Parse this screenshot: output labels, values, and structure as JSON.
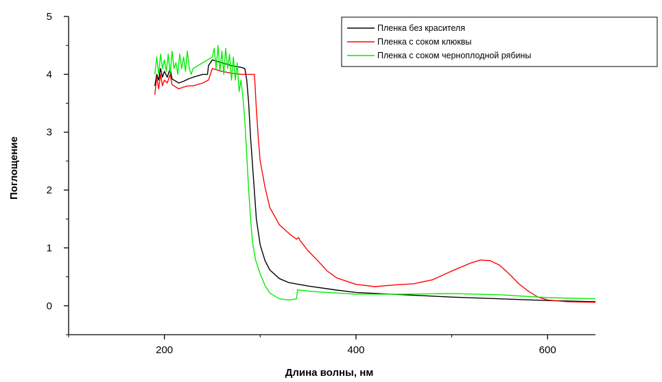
{
  "chart_data": {
    "type": "line",
    "xlabel": "Длина волны, нм",
    "ylabel": "Поглощение",
    "xlim": [
      100,
      650
    ],
    "ylim": [
      -0.5,
      5
    ],
    "x_ticks": [
      200,
      400,
      600
    ],
    "x_tick_labels": [
      "200",
      "400",
      "600"
    ],
    "y_ticks": [
      0,
      1,
      2,
      3,
      4,
      5
    ],
    "y_tick_labels": [
      "0",
      "1",
      "2",
      "3",
      "4",
      "5"
    ],
    "grid": false,
    "legend_position": "top-right",
    "series": [
      {
        "name": "Пленка без красителя",
        "color": "#000000",
        "x": [
          190,
          192,
          194,
          196,
          198,
          200,
          203,
          206,
          208,
          210,
          215,
          220,
          225,
          230,
          240,
          245,
          246,
          250,
          260,
          270,
          280,
          284,
          286,
          288,
          290,
          293,
          296,
          300,
          305,
          310,
          320,
          330,
          340,
          350,
          380,
          400,
          450,
          500,
          550,
          600,
          650
        ],
        "y": [
          3.8,
          4.0,
          3.9,
          4.1,
          3.95,
          4.05,
          3.95,
          4.1,
          3.92,
          3.9,
          3.85,
          3.88,
          3.92,
          3.95,
          4.0,
          4.0,
          4.15,
          4.25,
          4.2,
          4.15,
          4.12,
          4.1,
          3.9,
          3.5,
          2.9,
          2.2,
          1.5,
          1.05,
          0.78,
          0.62,
          0.47,
          0.4,
          0.37,
          0.34,
          0.27,
          0.23,
          0.19,
          0.15,
          0.12,
          0.09,
          0.07
        ]
      },
      {
        "name": "Пленка с соком клюквы",
        "color": "#ff0000",
        "x": [
          190,
          192,
          194,
          196,
          198,
          200,
          203,
          206,
          208,
          210,
          215,
          220,
          225,
          230,
          240,
          246,
          250,
          260,
          270,
          280,
          290,
          294,
          296,
          298,
          300,
          305,
          310,
          320,
          330,
          338,
          340,
          342,
          350,
          360,
          370,
          380,
          400,
          420,
          440,
          460,
          480,
          500,
          520,
          530,
          540,
          550,
          560,
          570,
          580,
          590,
          600,
          620,
          650
        ],
        "y": [
          3.65,
          3.95,
          3.75,
          4.0,
          3.8,
          3.9,
          3.85,
          4.0,
          3.82,
          3.8,
          3.75,
          3.78,
          3.8,
          3.8,
          3.85,
          3.9,
          4.1,
          4.05,
          4.02,
          4.0,
          4.0,
          4.0,
          3.4,
          2.9,
          2.5,
          2.05,
          1.7,
          1.4,
          1.25,
          1.15,
          1.18,
          1.12,
          0.95,
          0.78,
          0.6,
          0.48,
          0.37,
          0.33,
          0.36,
          0.38,
          0.45,
          0.6,
          0.74,
          0.79,
          0.78,
          0.7,
          0.55,
          0.38,
          0.25,
          0.15,
          0.1,
          0.07,
          0.06
        ]
      },
      {
        "name": "Пленка с соком черноплодной рябины",
        "color": "#00ee00",
        "x": [
          190,
          192,
          194,
          196,
          198,
          200,
          202,
          204,
          206,
          208,
          210,
          212,
          214,
          216,
          218,
          220,
          222,
          224,
          226,
          228,
          230,
          235,
          240,
          245,
          250,
          252,
          254,
          256,
          258,
          260,
          262,
          264,
          266,
          268,
          270,
          272,
          274,
          276,
          278,
          280,
          282,
          284,
          286,
          288,
          290,
          292,
          295,
          300,
          305,
          310,
          320,
          330,
          338,
          339,
          340,
          360,
          400,
          450,
          500,
          550,
          600,
          650
        ],
        "y": [
          4.0,
          4.3,
          4.0,
          4.35,
          4.1,
          4.25,
          4.05,
          4.35,
          4.0,
          4.4,
          4.1,
          4.2,
          4.0,
          4.35,
          4.1,
          4.3,
          4.05,
          4.4,
          4.1,
          4.0,
          4.1,
          4.15,
          4.2,
          4.25,
          4.3,
          4.45,
          4.1,
          4.5,
          4.05,
          4.4,
          4.0,
          4.45,
          4.1,
          4.35,
          3.9,
          4.3,
          3.9,
          4.2,
          3.7,
          3.9,
          3.6,
          3.2,
          2.6,
          2.0,
          1.5,
          1.1,
          0.8,
          0.55,
          0.35,
          0.22,
          0.12,
          0.1,
          0.12,
          0.28,
          0.27,
          0.24,
          0.2,
          0.2,
          0.21,
          0.19,
          0.14,
          0.12
        ]
      }
    ]
  }
}
